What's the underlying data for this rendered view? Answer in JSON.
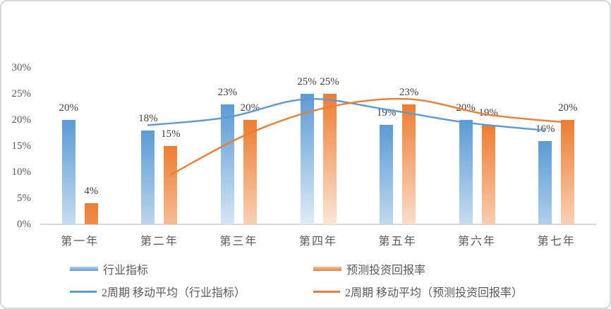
{
  "chart": {
    "background": "#ffffff",
    "border_color": "#d7d7d7",
    "axis_line_color": "#d9d9d9",
    "axis_text_color": "#595959",
    "data_label_color": "#404040"
  },
  "chart_data": {
    "type": "bar",
    "title": "",
    "categories": [
      "第一年",
      "第二年",
      "第三年",
      "第四年",
      "第五年",
      "第六年",
      "第七年"
    ],
    "series": [
      {
        "name": "行业指标",
        "type": "bar",
        "color": "#5B9BD5",
        "values": [
          20,
          18,
          23,
          25,
          19,
          20,
          16
        ],
        "data_labels": [
          "20%",
          "18%",
          "23%",
          "25%",
          "19%",
          "20%",
          "16%"
        ]
      },
      {
        "name": "预测投资回报率",
        "type": "bar",
        "color": "#ED7D31",
        "values": [
          4,
          15,
          20,
          25,
          23,
          19,
          20
        ],
        "data_labels": [
          "4%",
          "15%",
          "20%",
          "25%",
          "23%",
          "19%",
          "20%"
        ]
      }
    ],
    "trendlines": [
      {
        "name": "2周期 移动平均（行业指标）",
        "color": "#5B9BD5",
        "series_index": 0,
        "start_category_index": 1,
        "values": [
          19,
          20.5,
          24,
          22,
          19.5,
          18
        ]
      },
      {
        "name": "2周期 移动平均（预测投资回报率）",
        "color": "#ED7D31",
        "series_index": 1,
        "start_category_index": 1,
        "values": [
          9.5,
          17.5,
          22.5,
          24,
          21,
          19.5
        ]
      }
    ],
    "y_axis": {
      "min": 0,
      "max": 30,
      "step": 5,
      "tick_labels": [
        "0%",
        "5%",
        "10%",
        "15%",
        "20%",
        "25%",
        "30%"
      ]
    },
    "x_axis": {
      "tick_labels": [
        "第一年",
        "第二年",
        "第三年",
        "第四年",
        "第五年",
        "第六年",
        "第七年"
      ]
    },
    "grid": false,
    "legend_position": "bottom"
  },
  "legend": {
    "items": [
      {
        "label": "行业指标",
        "swatch": "bar",
        "color": "#5B9BD5"
      },
      {
        "label": "预测投资回报率",
        "swatch": "bar",
        "color": "#ED7D31"
      },
      {
        "label": "2周期 移动平均（行业指标）",
        "swatch": "line",
        "color": "#5B9BD5"
      },
      {
        "label": "2周期 移动平均（预测投资回报率）",
        "swatch": "line",
        "color": "#ED7D31"
      }
    ]
  }
}
